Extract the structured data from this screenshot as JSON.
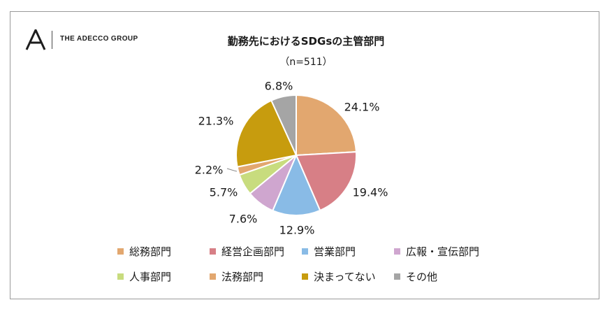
{
  "brand": {
    "logo_text": "THE ADECCO GROUP"
  },
  "chart_data": {
    "type": "pie",
    "title": "勤務先におけるSDGsの主管部門",
    "subtitle": "（n=511）",
    "legend_position": "bottom",
    "slices": [
      {
        "name": "総務部門",
        "value": 24.1,
        "label": "24.1%",
        "color": "#E2A76F"
      },
      {
        "name": "経営企画部門",
        "value": 19.4,
        "label": "19.4%",
        "color": "#D77F86"
      },
      {
        "name": "営業部門",
        "value": 12.9,
        "label": "12.9%",
        "color": "#89BBE6"
      },
      {
        "name": "広報・宣伝部門",
        "value": 7.6,
        "label": "7.6%",
        "color": "#CFA6CF"
      },
      {
        "name": "人事部門",
        "value": 5.7,
        "label": "5.7%",
        "color": "#C8DC7E"
      },
      {
        "name": "法務部門",
        "value": 2.2,
        "label": "2.2%",
        "color": "#E2A76F"
      },
      {
        "name": "決まってない",
        "value": 21.3,
        "label": "21.3%",
        "color": "#C79C0E"
      },
      {
        "name": "その他",
        "value": 6.8,
        "label": "6.8%",
        "color": "#A5A5A5"
      }
    ]
  }
}
